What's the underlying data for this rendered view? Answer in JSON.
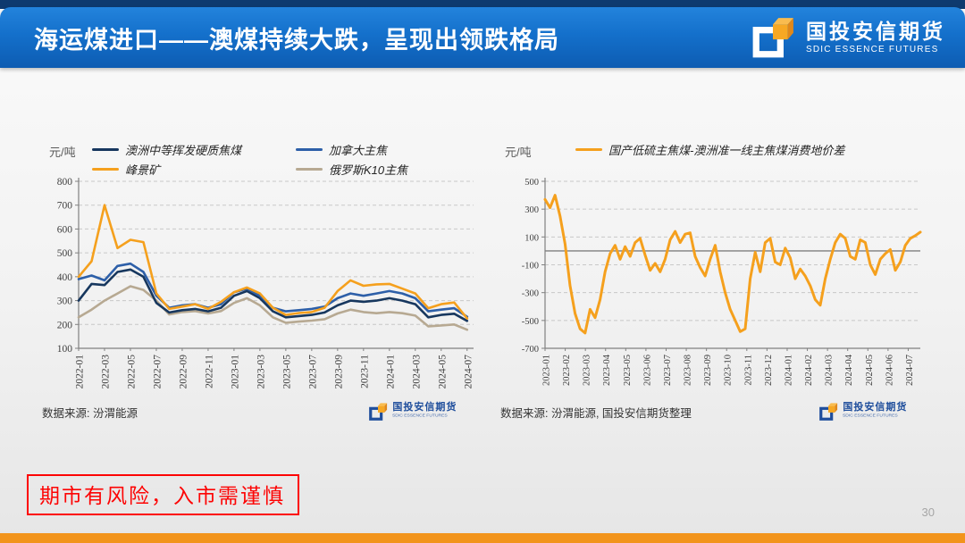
{
  "slide": {
    "title": "海运煤进口——澳煤持续大跌，呈现出领跌格局",
    "page_number": "30",
    "disclaimer": "期市有风险，入市需谨慎"
  },
  "logo": {
    "cn": "国投安信期货",
    "en": "SDIC ESSENCE FUTURES"
  },
  "charts": {
    "left": {
      "unit": "元/吨",
      "source": "数据来源: 汾渭能源"
    },
    "right": {
      "unit": "元/吨",
      "source": "数据来源: 汾渭能源, 国投安信期货整理"
    }
  },
  "colors": {
    "header_blue": "#1470cb",
    "accent_orange": "#f2941c",
    "risk_red": "#fd0404",
    "grid_gray": "#c8c8c8",
    "axis_gray": "#808080"
  },
  "chart_data": [
    {
      "id": "left",
      "type": "line",
      "unit": "元/吨",
      "ylim": [
        100,
        800
      ],
      "yticks": [
        800,
        700,
        600,
        500,
        400,
        300,
        200,
        100
      ],
      "months_count": 31,
      "x_labels": [
        "2022-01",
        "2022-03",
        "2022-05",
        "2022-07",
        "2022-09",
        "2022-11",
        "2023-01",
        "2023-03",
        "2023-05",
        "2023-07",
        "2023-09",
        "2023-11",
        "2024-01",
        "2024-03",
        "2024-05",
        "2024-07"
      ],
      "grid": "dashed",
      "legend_position": "top",
      "series": [
        {
          "name": "澳洲中等挥发硬质焦煤",
          "color": "#17375e",
          "values": [
            300,
            370,
            365,
            420,
            430,
            400,
            290,
            250,
            260,
            265,
            255,
            270,
            320,
            340,
            310,
            255,
            230,
            235,
            240,
            250,
            280,
            300,
            295,
            300,
            310,
            300,
            285,
            230,
            240,
            245,
            215
          ]
        },
        {
          "name": "加拿大主焦",
          "color": "#2d5fa8",
          "values": [
            390,
            405,
            385,
            445,
            455,
            420,
            320,
            270,
            280,
            285,
            270,
            285,
            335,
            350,
            320,
            270,
            255,
            260,
            265,
            275,
            310,
            330,
            320,
            330,
            340,
            330,
            310,
            255,
            262,
            268,
            232
          ]
        },
        {
          "name": "峰景矿",
          "color": "#f5a01d",
          "values": [
            400,
            465,
            700,
            520,
            555,
            545,
            330,
            265,
            275,
            285,
            265,
            295,
            335,
            355,
            330,
            270,
            240,
            248,
            252,
            270,
            340,
            385,
            362,
            368,
            370,
            350,
            330,
            268,
            285,
            292,
            225
          ]
        },
        {
          "name": "俄罗斯K10主焦",
          "color": "#b7a992",
          "values": [
            230,
            262,
            300,
            330,
            360,
            345,
            300,
            242,
            252,
            256,
            246,
            256,
            290,
            310,
            280,
            230,
            207,
            212,
            216,
            222,
            246,
            262,
            252,
            247,
            252,
            247,
            237,
            192,
            196,
            200,
            178
          ]
        }
      ]
    },
    {
      "id": "right",
      "type": "line",
      "unit": "元/吨",
      "ylim": [
        -700,
        500
      ],
      "yticks": [
        500,
        300,
        100,
        -100,
        -300,
        -500,
        -700
      ],
      "zero_line": true,
      "months_count": 19,
      "x_labels": [
        "2023-01",
        "2023-02",
        "2023-03",
        "2023-04",
        "2023-05",
        "2023-06",
        "2023-07",
        "2023-08",
        "2023-09",
        "2023-10",
        "2023-11",
        "2023-12",
        "2024-01",
        "2024-02",
        "2024-03",
        "2024-04",
        "2024-05",
        "2024-06",
        "2024-07"
      ],
      "grid": "dashed",
      "legend_position": "top",
      "series": [
        {
          "name": "国产低硫主焦煤-澳洲准一线主焦煤消费地价差",
          "color": "#f5a01d",
          "values": [
            370,
            310,
            400,
            250,
            50,
            -250,
            -450,
            -560,
            -590,
            -420,
            -480,
            -350,
            -150,
            -20,
            40,
            -60,
            30,
            -40,
            60,
            90,
            -30,
            -140,
            -90,
            -150,
            -60,
            80,
            140,
            60,
            120,
            130,
            -40,
            -120,
            -180,
            -60,
            40,
            -150,
            -300,
            -420,
            -500,
            -580,
            -560,
            -200,
            -10,
            -150,
            60,
            90,
            -80,
            -100,
            20,
            -50,
            -200,
            -130,
            -180,
            -250,
            -350,
            -390,
            -200,
            -60,
            60,
            120,
            90,
            -40,
            -60,
            80,
            60,
            -100,
            -170,
            -60,
            -20,
            10,
            -140,
            -80,
            40,
            90,
            110,
            135
          ]
        }
      ]
    }
  ]
}
